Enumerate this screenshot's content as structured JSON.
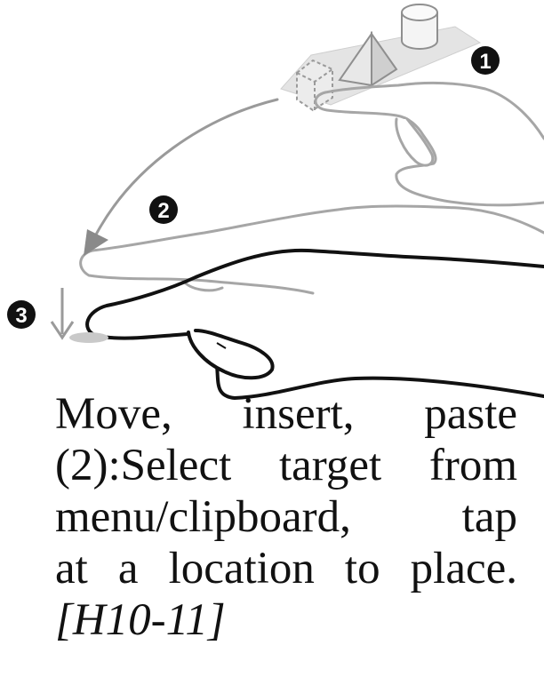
{
  "figure": {
    "step_markers": [
      "1",
      "2",
      "3"
    ],
    "objects": [
      "cube",
      "pyramid",
      "cylinder"
    ]
  },
  "caption": {
    "lines": [
      "Move, insert, paste",
      "(2):Select target from",
      "menu/clipboard, tap",
      "at a location to place."
    ],
    "reference": "[H10-11]"
  },
  "colors": {
    "outline_dark": "#111111",
    "outline_light": "#9a9a9a",
    "panel": "#e2e2e2",
    "marker": "#111111"
  }
}
